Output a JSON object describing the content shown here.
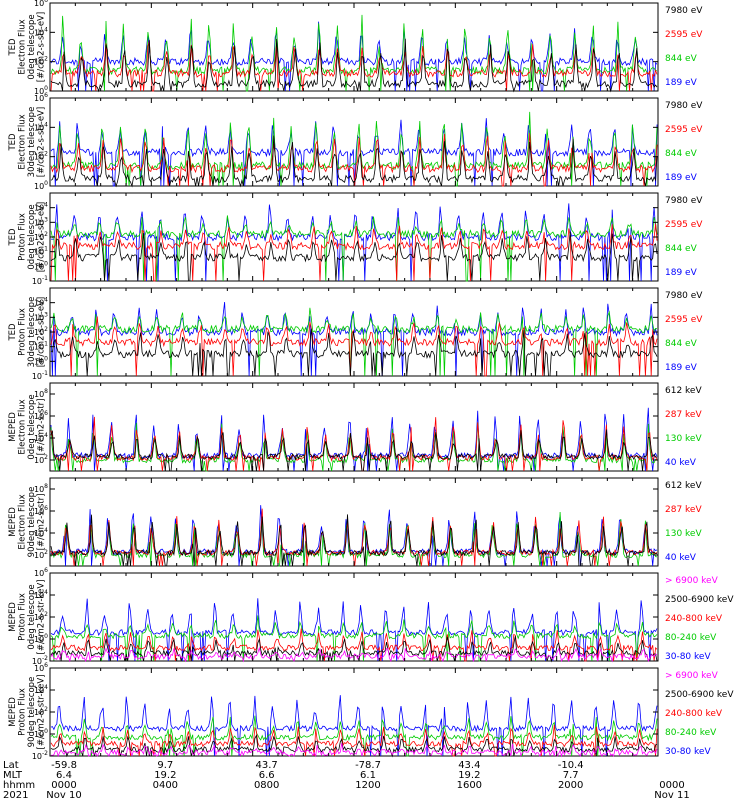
{
  "chart_data": [
    {
      "type": "line",
      "ylabel": [
        "TED",
        "Electron Flux",
        "0deg telescope",
        "[#/cm2-s-str-eV]"
      ],
      "yscale": "log",
      "ylim_exp": [
        0,
        6
      ],
      "yticks": [
        {
          "b": "10",
          "e": "6"
        },
        {
          "b": "10",
          "e": "4"
        },
        {
          "b": "10",
          "e": "2"
        },
        {
          "b": "10",
          "e": "0"
        }
      ],
      "series": [
        {
          "name": "7980 eV",
          "color": "#000000",
          "base": 0.5,
          "peak": 3.8
        },
        {
          "name": "2595 eV",
          "color": "#ff0000",
          "base": 1.2,
          "peak": 3.6
        },
        {
          "name": "844 eV",
          "color": "#00cc00",
          "base": 1.4,
          "peak": 5.4
        },
        {
          "name": "189 eV",
          "color": "#0000ff",
          "base": 2.0,
          "peak": 4.6
        }
      ]
    },
    {
      "type": "line",
      "ylabel": [
        "TED",
        "Electron Flux",
        "30deg telescope",
        "[#/cm2-s-str-eV]"
      ],
      "yscale": "log",
      "ylim_exp": [
        0,
        6
      ],
      "yticks": [
        {
          "b": "10",
          "e": "6"
        },
        {
          "b": "10",
          "e": "4"
        },
        {
          "b": "10",
          "e": "2"
        },
        {
          "b": "10",
          "e": "0"
        }
      ],
      "series": [
        {
          "name": "7980 eV",
          "color": "#000000",
          "base": 0.5,
          "peak": 3.8
        },
        {
          "name": "2595 eV",
          "color": "#ff0000",
          "base": 1.2,
          "peak": 3.8
        },
        {
          "name": "844 eV",
          "color": "#00cc00",
          "base": 1.4,
          "peak": 5.3
        },
        {
          "name": "189 eV",
          "color": "#0000ff",
          "base": 2.3,
          "peak": 4.8
        }
      ]
    },
    {
      "type": "line",
      "ylabel": [
        "TED",
        "Proton Flux",
        "0deg telescope",
        "[#/cm2-s-str-eV]"
      ],
      "yscale": "log",
      "ylim_exp": [
        -1,
        5
      ],
      "yticks": [
        {
          "b": "10",
          "e": "4"
        },
        {
          "b": "10",
          "e": "3"
        },
        {
          "b": "10",
          "e": "2"
        },
        {
          "b": "10",
          "e": "1"
        },
        {
          "b": "10",
          "e": "0"
        },
        {
          "b": "10",
          "e": "-1"
        }
      ],
      "series": [
        {
          "name": "7980 eV",
          "color": "#000000",
          "base": 0.6,
          "peak": 2.5
        },
        {
          "name": "2595 eV",
          "color": "#ff0000",
          "base": 1.4,
          "peak": 3.0
        },
        {
          "name": "844 eV",
          "color": "#00cc00",
          "base": 2.2,
          "peak": 3.5
        },
        {
          "name": "189 eV",
          "color": "#0000ff",
          "base": 2.0,
          "peak": 4.4
        }
      ]
    },
    {
      "type": "line",
      "ylabel": [
        "TED",
        "Proton Flux",
        "30deg telescope",
        "[#/cm2-s-str-eV]"
      ],
      "yscale": "log",
      "ylim_exp": [
        -1,
        5
      ],
      "yticks": [
        {
          "b": "10",
          "e": "4"
        },
        {
          "b": "10",
          "e": "3"
        },
        {
          "b": "10",
          "e": "2"
        },
        {
          "b": "10",
          "e": "1"
        },
        {
          "b": "10",
          "e": "0"
        },
        {
          "b": "10",
          "e": "-1"
        }
      ],
      "series": [
        {
          "name": "7980 eV",
          "color": "#000000",
          "base": 0.5,
          "peak": 2.3
        },
        {
          "name": "2595 eV",
          "color": "#ff0000",
          "base": 1.3,
          "peak": 3.0
        },
        {
          "name": "844 eV",
          "color": "#00cc00",
          "base": 2.2,
          "peak": 3.6
        },
        {
          "name": "189 eV",
          "color": "#0000ff",
          "base": 2.0,
          "peak": 4.0
        }
      ]
    },
    {
      "type": "line",
      "ylabel": [
        "MEPED",
        "Electron Flux",
        "0deg telescope",
        "[#/cm2-s-str]"
      ],
      "yscale": "log",
      "ylim_exp": [
        1,
        9
      ],
      "yticks": [
        {
          "b": "10",
          "e": "8"
        },
        {
          "b": "10",
          "e": "6"
        },
        {
          "b": "10",
          "e": "4"
        },
        {
          "b": "10",
          "e": "2"
        }
      ],
      "series": [
        {
          "name": "612 keV",
          "color": "#000000",
          "base": 2.3,
          "peak": 5.0
        },
        {
          "name": "287 keV",
          "color": "#ff0000",
          "base": 2.2,
          "peak": 6.0
        },
        {
          "name": "130 keV",
          "color": "#00cc00",
          "base": 2.0,
          "peak": 5.5
        },
        {
          "name": "40 keV",
          "color": "#0000ff",
          "base": 2.4,
          "peak": 7.2
        }
      ]
    },
    {
      "type": "line",
      "ylabel": [
        "MEPED",
        "Electron Flux",
        "90deg telescope",
        "[#/cm2-s-str]"
      ],
      "yscale": "log",
      "ylim_exp": [
        1,
        9
      ],
      "yticks": [
        {
          "b": "10",
          "e": "8"
        },
        {
          "b": "10",
          "e": "6"
        },
        {
          "b": "10",
          "e": "4"
        },
        {
          "b": "10",
          "e": "2"
        }
      ],
      "series": [
        {
          "name": "612 keV",
          "color": "#000000",
          "base": 2.2,
          "peak": 6.0
        },
        {
          "name": "287 keV",
          "color": "#ff0000",
          "base": 2.2,
          "peak": 6.4
        },
        {
          "name": "130 keV",
          "color": "#00cc00",
          "base": 2.0,
          "peak": 6.2
        },
        {
          "name": "40 keV",
          "color": "#0000ff",
          "base": 2.3,
          "peak": 7.0
        }
      ]
    },
    {
      "type": "line",
      "ylabel": [
        "MEPED",
        "Proton Flux",
        "0deg telescope",
        "[#/cm2-s-str-keV]"
      ],
      "yscale": "log",
      "ylim_exp": [
        -2,
        6
      ],
      "yticks": [
        {
          "b": "10",
          "e": "6"
        },
        {
          "b": "10",
          "e": "4"
        },
        {
          "b": "10",
          "e": "2"
        },
        {
          "b": "10",
          "e": "0"
        },
        {
          "b": "10",
          "e": "-2"
        }
      ],
      "series": [
        {
          "name": "> 6900 keV",
          "color": "#ff00ff",
          "base": -1.6,
          "peak": -0.8
        },
        {
          "name": "2500-6900 keV",
          "color": "#000000",
          "base": -1.3,
          "peak": 0.3
        },
        {
          "name": "240-800 keV",
          "color": "#ff0000",
          "base": -0.8,
          "peak": 1.0
        },
        {
          "name": "80-240 keV",
          "color": "#00cc00",
          "base": 0.3,
          "peak": 2.0
        },
        {
          "name": "30-80 keV",
          "color": "#0000ff",
          "base": 0.6,
          "peak": 3.8
        }
      ]
    },
    {
      "type": "line",
      "ylabel": [
        "MEPED",
        "Proton Flux",
        "90deg telescope",
        "[#/cm2-s-str-keV]"
      ],
      "yscale": "log",
      "ylim_exp": [
        -2,
        6
      ],
      "yticks": [
        {
          "b": "10",
          "e": "6"
        },
        {
          "b": "10",
          "e": "4"
        },
        {
          "b": "10",
          "e": "2"
        },
        {
          "b": "10",
          "e": "0"
        },
        {
          "b": "10",
          "e": "-2"
        }
      ],
      "series": [
        {
          "name": "> 6900 keV",
          "color": "#ff00ff",
          "base": -1.7,
          "peak": -0.9
        },
        {
          "name": "2500-6900 keV",
          "color": "#000000",
          "base": -1.4,
          "peak": 0.0
        },
        {
          "name": "240-800 keV",
          "color": "#ff0000",
          "base": -0.9,
          "peak": 0.9
        },
        {
          "name": "80-240 keV",
          "color": "#00cc00",
          "base": -0.3,
          "peak": 2.0
        },
        {
          "name": "30-80 keV",
          "color": "#0000ff",
          "base": 0.5,
          "peak": 4.0
        }
      ]
    }
  ],
  "x_axis": {
    "row_labels": [
      "Lat",
      "MLT",
      "hhmm",
      "2021"
    ],
    "ticks": [
      {
        "lat": "-59.8",
        "mlt": "6.4",
        "hhmm": "0000",
        "date": "Nov 10"
      },
      {
        "lat": "9.7",
        "mlt": "19.2",
        "hhmm": "0400",
        "date": ""
      },
      {
        "lat": "43.7",
        "mlt": "6.6",
        "hhmm": "0800",
        "date": ""
      },
      {
        "lat": "-78.7",
        "mlt": "6.1",
        "hhmm": "1200",
        "date": ""
      },
      {
        "lat": "43.4",
        "mlt": "19.2",
        "hhmm": "1600",
        "date": ""
      },
      {
        "lat": "-10.4",
        "mlt": "7.7",
        "hhmm": "2000",
        "date": ""
      },
      {
        "lat": "",
        "mlt": "",
        "hhmm": "0000",
        "date": "Nov 11"
      }
    ]
  }
}
